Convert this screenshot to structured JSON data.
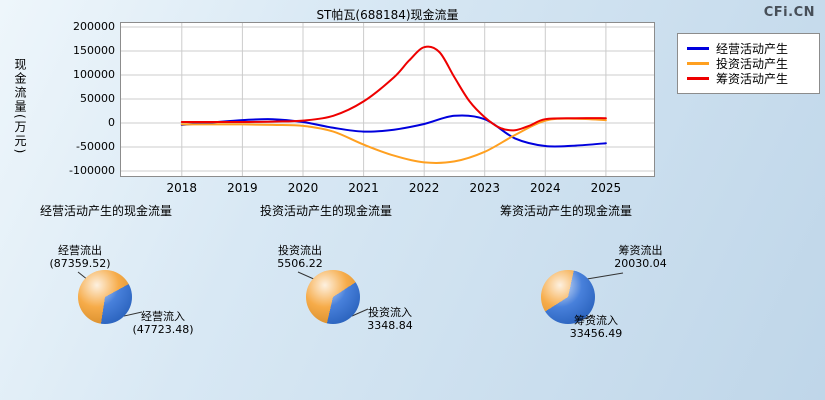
{
  "watermark": "CFi.CN",
  "chart_data": [
    {
      "type": "line",
      "title": "ST帕瓦(688184)现金流量",
      "ylabel": "现金流量(万元)",
      "xlabel": "",
      "unit": "万元",
      "ylim": [
        -100000,
        200000
      ],
      "xlim": [
        2016.98,
        2025.81
      ],
      "y_ticks": [
        200000,
        150000,
        100000,
        50000,
        0,
        -50000,
        -100000
      ],
      "x_ticks": [
        2018,
        2019,
        2020,
        2021,
        2022,
        2023,
        2024,
        2025
      ],
      "grid": true,
      "legend_position": "top-right",
      "series": [
        {
          "name": "经营活动产生",
          "color": "#0000dd",
          "x": [
            2018,
            2018.5,
            2019,
            2019.5,
            2020,
            2020.5,
            2021,
            2021.5,
            2022,
            2022.5,
            2023,
            2023.5,
            2024,
            2024.5,
            2025
          ],
          "y": [
            -4000,
            1000,
            6000,
            8000,
            2000,
            -10000,
            -18000,
            -14000,
            -2000,
            15000,
            8000,
            -32000,
            -48000,
            -47000,
            -42000
          ]
        },
        {
          "name": "投资活动产生",
          "color": "#ffa020",
          "x": [
            2018,
            2018.5,
            2019,
            2019.5,
            2020,
            2020.5,
            2021,
            2021.5,
            2022,
            2022.5,
            2023,
            2023.5,
            2024,
            2024.5,
            2025
          ],
          "y": [
            -3000,
            -3000,
            -3000,
            -4000,
            -6000,
            -18000,
            -45000,
            -68000,
            -82000,
            -80000,
            -60000,
            -25000,
            5000,
            9000,
            6000
          ]
        },
        {
          "name": "筹资活动产生",
          "color": "#ee0000",
          "x": [
            2018,
            2018.5,
            2019,
            2019.5,
            2020,
            2020.5,
            2021,
            2021.5,
            2021.75,
            2022,
            2022.25,
            2022.5,
            2022.75,
            2023,
            2023.25,
            2023.5,
            2023.75,
            2024,
            2024.5,
            2025
          ],
          "y": [
            2000,
            2000,
            2000,
            3000,
            5000,
            15000,
            45000,
            95000,
            130000,
            158000,
            148000,
            95000,
            45000,
            12000,
            -10000,
            -15000,
            -5000,
            8000,
            10000,
            10000
          ]
        }
      ]
    },
    {
      "type": "pie",
      "title": "经营活动产生的现金流量",
      "labels": [
        "经营流出",
        "经营流入"
      ],
      "values": [
        87359.52,
        47723.48
      ],
      "value_display": [
        "(87359.52)",
        "(47723.48)"
      ],
      "colors": [
        "#f5a030",
        "#2f6fd6"
      ]
    },
    {
      "type": "pie",
      "title": "投资活动产生的现金流量",
      "labels": [
        "投资流出",
        "投资流入"
      ],
      "values": [
        5506.22,
        3348.84
      ],
      "value_display": [
        "5506.22",
        "3348.84"
      ],
      "colors": [
        "#f5a030",
        "#2f6fd6"
      ]
    },
    {
      "type": "pie",
      "title": "筹资活动产生的现金流量",
      "labels": [
        "筹资流出",
        "筹资流入"
      ],
      "values": [
        20030.04,
        33456.49
      ],
      "value_display": [
        "20030.04",
        "33456.49"
      ],
      "colors": [
        "#f5a030",
        "#2f6fd6"
      ]
    }
  ]
}
